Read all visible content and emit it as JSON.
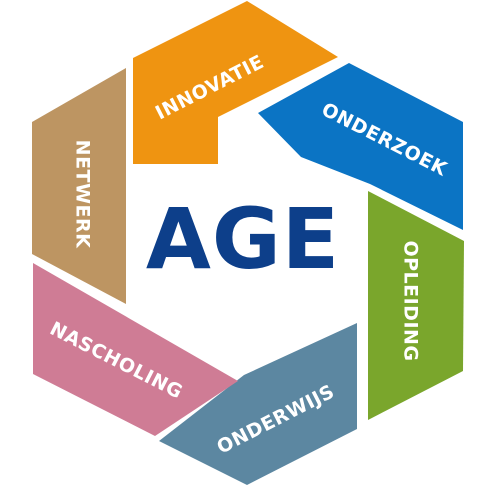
{
  "center": {
    "text": "AGE",
    "color": "#0d3f8a"
  },
  "segments": [
    {
      "id": "innovatie",
      "label": "INNOVATIE",
      "color": "#ef9411"
    },
    {
      "id": "onderzoek",
      "label": "ONDERZOEK",
      "color": "#0b74c4"
    },
    {
      "id": "opleiding",
      "label": "OPLEIDING",
      "color": "#7aa62c"
    },
    {
      "id": "onderwijs",
      "label": "ONDERWIJS",
      "color": "#5c87a1"
    },
    {
      "id": "nascholing",
      "label": "NASCHOLING",
      "color": "#cf7c95"
    },
    {
      "id": "netwerk",
      "label": "NETWERK",
      "color": "#bd9562"
    }
  ]
}
